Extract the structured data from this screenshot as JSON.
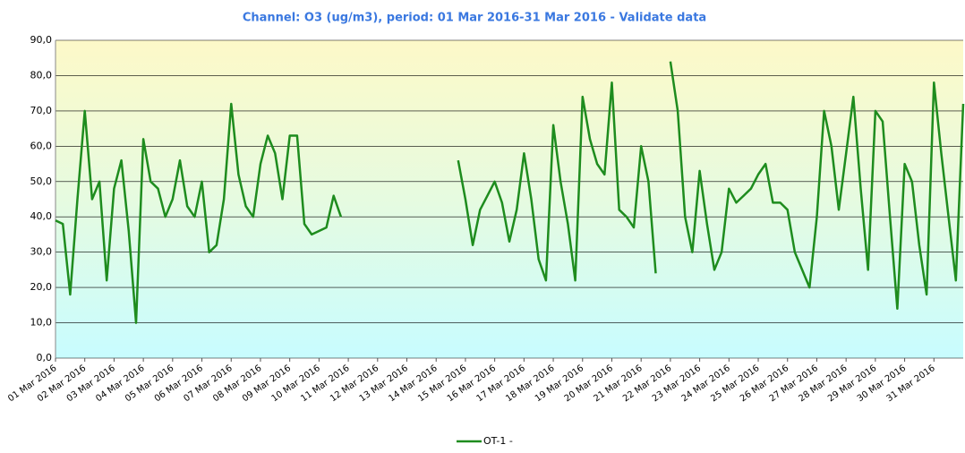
{
  "chart_data": {
    "type": "line",
    "title": "Channel: O3 (ug/m3), period: 01 Mar 2016-31 Mar 2016 - Validate data",
    "x": [
      0,
      6,
      12,
      18,
      24,
      30,
      36,
      42,
      48,
      54,
      60,
      66,
      72,
      78,
      84,
      90,
      96,
      102,
      108,
      114,
      120,
      126,
      132,
      138,
      144,
      150,
      156,
      162,
      168,
      174,
      180,
      186,
      192,
      198,
      204,
      210,
      216,
      222,
      228,
      234,
      240,
      246,
      252,
      258,
      264,
      270,
      276,
      282,
      288,
      294,
      300,
      306,
      312,
      318,
      324,
      330,
      336,
      342,
      348,
      354,
      360,
      366,
      372,
      378,
      384,
      390,
      396,
      402,
      408,
      414,
      420,
      426,
      432,
      438,
      444,
      450,
      456,
      462,
      468,
      474,
      480,
      486,
      492,
      498,
      504,
      510,
      516,
      522,
      528,
      534,
      540,
      546,
      552,
      558,
      564,
      570,
      576,
      582,
      588,
      594,
      600,
      606,
      612,
      618,
      624,
      630,
      636,
      642,
      648,
      654,
      660,
      666,
      672,
      678,
      684,
      690,
      696,
      702,
      708,
      714,
      720,
      726,
      732,
      738,
      744
    ],
    "series": [
      {
        "name": "OT-1 -",
        "color": "#1e8c1e",
        "values": [
          39,
          38,
          18,
          45,
          70,
          45,
          50,
          22,
          48,
          56,
          36,
          10,
          62,
          50,
          48,
          40,
          45,
          56,
          43,
          40,
          50,
          30,
          32,
          45,
          72,
          52,
          43,
          40,
          55,
          63,
          58,
          45,
          63,
          63,
          38,
          35,
          36,
          37,
          46,
          40,
          null,
          null,
          null,
          null,
          null,
          null,
          null,
          null,
          null,
          null,
          null,
          null,
          null,
          null,
          null,
          56,
          45,
          32,
          42,
          46,
          50,
          44,
          33,
          42,
          58,
          45,
          28,
          22,
          66,
          50,
          38,
          22,
          74,
          62,
          55,
          52,
          78,
          42,
          40,
          37,
          60,
          50,
          24,
          null,
          84,
          70,
          40,
          30,
          53,
          38,
          25,
          30,
          48,
          44,
          46,
          48,
          52,
          55,
          44,
          44,
          42,
          30,
          25,
          20,
          40,
          70,
          60,
          42,
          58,
          74,
          48,
          25,
          70,
          67,
          40,
          14,
          55,
          50,
          32,
          18,
          78,
          58,
          40,
          22,
          72
        ]
      }
    ],
    "xlim": [
      0,
      744
    ],
    "xticks": [
      {
        "value": 0,
        "label": "01 Mar 2016"
      },
      {
        "value": 24,
        "label": "02 Mar 2016"
      },
      {
        "value": 48,
        "label": "03 Mar 2016"
      },
      {
        "value": 72,
        "label": "04 Mar 2016"
      },
      {
        "value": 96,
        "label": "05 Mar 2016"
      },
      {
        "value": 120,
        "label": "06 Mar 2016"
      },
      {
        "value": 144,
        "label": "07 Mar 2016"
      },
      {
        "value": 168,
        "label": "08 Mar 2016"
      },
      {
        "value": 192,
        "label": "09 Mar 2016"
      },
      {
        "value": 216,
        "label": "10 Mar 2016"
      },
      {
        "value": 240,
        "label": "11 Mar 2016"
      },
      {
        "value": 264,
        "label": "12 Mar 2016"
      },
      {
        "value": 288,
        "label": "13 Mar 2016"
      },
      {
        "value": 312,
        "label": "14 Mar 2016"
      },
      {
        "value": 336,
        "label": "15 Mar 2016"
      },
      {
        "value": 360,
        "label": "16 Mar 2016"
      },
      {
        "value": 384,
        "label": "17 Mar 2016"
      },
      {
        "value": 408,
        "label": "18 Mar 2016"
      },
      {
        "value": 432,
        "label": "19 Mar 2016"
      },
      {
        "value": 456,
        "label": "20 Mar 2016"
      },
      {
        "value": 480,
        "label": "21 Mar 2016"
      },
      {
        "value": 504,
        "label": "22 Mar 2016"
      },
      {
        "value": 528,
        "label": "23 Mar 2016"
      },
      {
        "value": 552,
        "label": "24 Mar 2016"
      },
      {
        "value": 576,
        "label": "25 Mar 2016"
      },
      {
        "value": 600,
        "label": "26 Mar 2016"
      },
      {
        "value": 624,
        "label": "27 Mar 2016"
      },
      {
        "value": 648,
        "label": "28 Mar 2016"
      },
      {
        "value": 672,
        "label": "29 Mar 2016"
      },
      {
        "value": 696,
        "label": "30 Mar 2016"
      },
      {
        "value": 720,
        "label": "31 Mar 2016"
      }
    ],
    "ylim": [
      0,
      90
    ],
    "yticks": [
      {
        "value": 0,
        "label": "0,0"
      },
      {
        "value": 10,
        "label": "10,0"
      },
      {
        "value": 20,
        "label": "20,0"
      },
      {
        "value": 30,
        "label": "30,0"
      },
      {
        "value": 40,
        "label": "40,0"
      },
      {
        "value": 50,
        "label": "50,0"
      },
      {
        "value": 60,
        "label": "60,0"
      },
      {
        "value": 70,
        "label": "70,0"
      },
      {
        "value": 80,
        "label": "80,0"
      },
      {
        "value": 90,
        "label": "90,0"
      }
    ],
    "grid": true,
    "legend": "bottom"
  }
}
